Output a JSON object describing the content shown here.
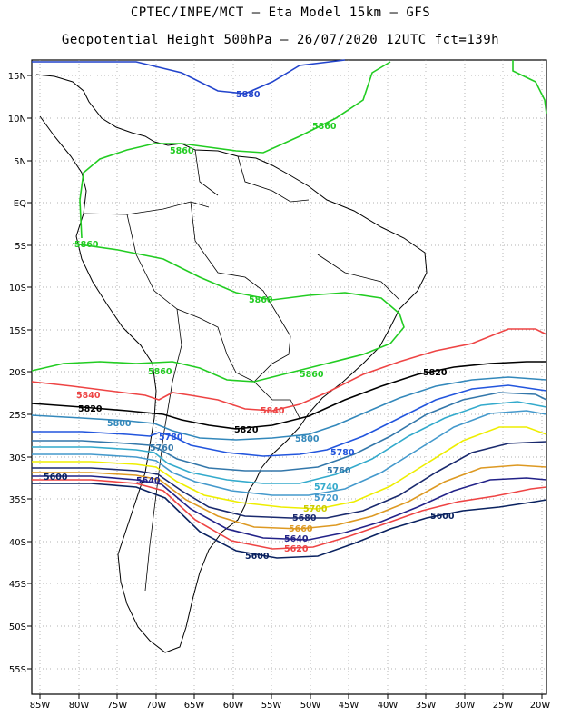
{
  "header": {
    "line1": "CPTEC/INPE/MCT –  Eta Model 15km – GFS",
    "line2": "Geopotential Height 500hPa – 26/07/2020 12UTC fct=139h"
  },
  "map": {
    "lon_labels": [
      "85W",
      "80W",
      "75W",
      "70W",
      "65W",
      "60W",
      "55W",
      "50W",
      "45W",
      "40W",
      "35W",
      "30W",
      "25W",
      "20W"
    ],
    "lat_labels": [
      "15N",
      "10N",
      "5N",
      "EQ",
      "5S",
      "10S",
      "15S",
      "20S",
      "25S",
      "30S",
      "35S",
      "40S",
      "45S",
      "50S",
      "55S"
    ],
    "contours": [
      {
        "level": "5880",
        "color": "#2244cc"
      },
      {
        "level": "5860",
        "color": "#22cc22"
      },
      {
        "level": "5840",
        "color": "#ee4444"
      },
      {
        "level": "5820",
        "color": "#000000"
      },
      {
        "level": "5800",
        "color": "#3388bb"
      },
      {
        "level": "5780",
        "color": "#2255dd"
      },
      {
        "level": "5760",
        "color": "#3377aa"
      },
      {
        "level": "5740",
        "color": "#33aacc"
      },
      {
        "level": "5720",
        "color": "#4499cc"
      },
      {
        "level": "5700",
        "color": "#eeee00"
      },
      {
        "level": "5680",
        "color": "#1a2a6e"
      },
      {
        "level": "5660",
        "color": "#dd9922"
      },
      {
        "level": "5640",
        "color": "#222288"
      },
      {
        "level": "5620",
        "color": "#ee4444"
      },
      {
        "level": "5600",
        "color": "#0a2260"
      }
    ]
  }
}
